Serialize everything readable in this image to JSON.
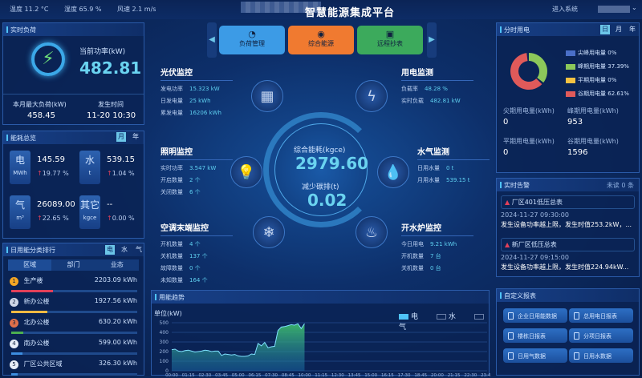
{
  "header": {
    "temperature": "温度 11.2 °C",
    "humidity": "湿度 65.9 %",
    "wind": "风速 2.1 m/s",
    "title": "智慧能源集成平台",
    "enter_system": "进入系统"
  },
  "realtime_load": {
    "title": "实时负荷",
    "power_label": "当前功率(kW)",
    "power_value": "482.81",
    "max_label": "本月最大负荷(kW)",
    "max_value": "458.45",
    "time_label": "发生时间",
    "time_value": "11-20 10:30"
  },
  "overview": {
    "title": "能耗总览",
    "tabs": [
      "月",
      "年"
    ],
    "items": [
      {
        "name": "电",
        "unit": "MWh",
        "value": "145.59",
        "change": "19.77 %"
      },
      {
        "name": "水",
        "unit": "t",
        "value": "539.15",
        "change": "1.04 %"
      },
      {
        "name": "气",
        "unit": "m³",
        "value": "26089.00",
        "change": "22.65 %"
      },
      {
        "name": "其它",
        "unit": "kgce",
        "value": "--",
        "change": "0.00 %"
      }
    ]
  },
  "ranking": {
    "title": "日用能分类排行",
    "tabs": [
      "电",
      "水",
      "气"
    ],
    "subtabs": [
      "区域",
      "部门",
      "业态"
    ],
    "items": [
      {
        "rank": "1",
        "name": "生产楼",
        "value": "2203.09 kWh",
        "pct": 100,
        "color": "#e2405a"
      },
      {
        "rank": "2",
        "name": "新办公楼",
        "value": "1927.56 kWh",
        "pct": 87,
        "color": "#f5b942"
      },
      {
        "rank": "3",
        "name": "北办公楼",
        "value": "630.20 kWh",
        "pct": 29,
        "color": "#4caf50"
      },
      {
        "rank": "4",
        "name": "南办公楼",
        "value": "599.00 kWh",
        "pct": 27,
        "color": "#3d8ee0"
      },
      {
        "rank": "5",
        "name": "厂区公共区域",
        "value": "326.30 kWh",
        "pct": 15,
        "color": "#3d8ee0"
      }
    ]
  },
  "nav": {
    "buttons": [
      {
        "label": "负荷管理",
        "color": "#3c9be6"
      },
      {
        "label": "综合能源",
        "color": "#f07a30"
      },
      {
        "label": "远程抄表",
        "color": "#3caa5c"
      }
    ]
  },
  "center": {
    "energy_label": "综合能耗(kgce)",
    "energy_value": "2979.60",
    "carbon_label": "减少碳排(t)",
    "carbon_value": "0.02"
  },
  "pv": {
    "title": "光伏监控",
    "rows": [
      [
        "发电功率",
        "15.323 kW"
      ],
      [
        "日发电量",
        "25 kWh"
      ],
      [
        "累发电量",
        "16206 kWh"
      ]
    ]
  },
  "elec": {
    "title": "用电监测",
    "rows": [
      [
        "负载率",
        "48.28 %"
      ],
      [
        "实时负载",
        "482.81 kW"
      ]
    ]
  },
  "light": {
    "title": "照明监控",
    "rows": [
      [
        "实时功率",
        "3.547 kW"
      ],
      [
        "开启数量",
        "2 个"
      ],
      [
        "关闭数量",
        "6 个"
      ]
    ]
  },
  "water": {
    "title": "水气监测",
    "rows": [
      [
        "日用水量",
        "0 t"
      ],
      [
        "月用水量",
        "539.15 t"
      ]
    ]
  },
  "ac": {
    "title": "空调末端监控",
    "rows": [
      [
        "开机数量",
        "4 个"
      ],
      [
        "关机数量",
        "137 个"
      ],
      [
        "故障数量",
        "0 个"
      ],
      [
        "未知数量",
        "164 个"
      ]
    ]
  },
  "boiler": {
    "title": "开水炉监控",
    "rows": [
      [
        "今日用电",
        "9.21 kWh"
      ],
      [
        "开机数量",
        "7 台"
      ],
      [
        "关机数量",
        "0 台"
      ]
    ]
  },
  "tou": {
    "title": "分时用电",
    "tabs": [
      "日",
      "月",
      "年"
    ],
    "legend": [
      {
        "label": "尖峰用电量",
        "pct": "0%",
        "value": 0,
        "color": "#4a6fc8"
      },
      {
        "label": "峰期用电量",
        "pct": "37.39%",
        "value": 37.39,
        "color": "#8cc85a"
      },
      {
        "label": "平期用电量",
        "pct": "0%",
        "value": 0,
        "color": "#f5c242"
      },
      {
        "label": "谷期用电量",
        "pct": "62.61%",
        "value": 62.61,
        "color": "#e05a5a"
      }
    ],
    "stats": [
      {
        "label": "尖期用电量(kWh)",
        "value": "0"
      },
      {
        "label": "峰期用电量(kWh)",
        "value": "953"
      },
      {
        "label": "平期用电量(kWh)",
        "value": "0"
      },
      {
        "label": "谷期用电量(kWh)",
        "value": "1596"
      }
    ]
  },
  "alerts": {
    "title": "实时告警",
    "unread": "未读 0 条",
    "items": [
      {
        "source": "厂区401低压总表",
        "time": "2024-11-27 09:30:00",
        "message": "发生设备功率越上限，发生时值253.2kW，..."
      },
      {
        "source": "新厂区低压总表",
        "time": "2024-11-27 09:15:00",
        "message": "发生设备功率越上限，发生时值224.94kW..."
      }
    ]
  },
  "reports": {
    "title": "自定义报表",
    "buttons": [
      "企业日用能数据",
      "总用电日报表",
      "楼栋日报表",
      "分项日报表",
      "日用气数据",
      "日用水数据"
    ]
  },
  "chart_data": {
    "type": "area",
    "title": "用能趋势",
    "ylabel": "单位(kW)",
    "ylim": [
      0,
      500
    ],
    "yticks": [
      0,
      100,
      200,
      300,
      400,
      500
    ],
    "xticks": [
      "00:00",
      "01:15",
      "02:30",
      "03:45",
      "05:00",
      "06:15",
      "07:30",
      "08:45",
      "10:00",
      "11:15",
      "12:30",
      "13:45",
      "15:00",
      "16:15",
      "17:30",
      "18:45",
      "20:00",
      "21:15",
      "22:30",
      "23:45"
    ],
    "legend": [
      {
        "label": "电",
        "active": true
      },
      {
        "label": "水",
        "active": false
      },
      {
        "label": "气",
        "active": false
      }
    ],
    "series": [
      {
        "name": "电",
        "x_interval_minutes": 15,
        "values": [
          220,
          225,
          205,
          200,
          210,
          215,
          205,
          195,
          200,
          205,
          215,
          210,
          200,
          205,
          205,
          160,
          175,
          170,
          165,
          170,
          155,
          150,
          150,
          155,
          175,
          170,
          285,
          260,
          295,
          240,
          250,
          255,
          420,
          455,
          460,
          470,
          480,
          475,
          490,
          440,
          490
        ]
      }
    ]
  }
}
